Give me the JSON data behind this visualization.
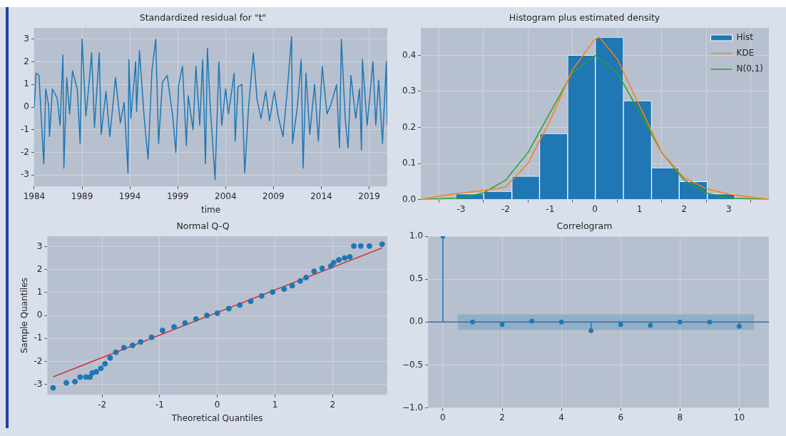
{
  "chart_data": [
    {
      "type": "line",
      "title": "Standardized residual for \"t\"",
      "xlabel": "time",
      "color": "#1f77b4",
      "grid": true,
      "xlim": [
        1984,
        2020.9
      ],
      "xticks": [
        1984,
        1989,
        1994,
        1999,
        2004,
        2009,
        2014,
        2019
      ],
      "ylim": [
        -3.5,
        3.5
      ],
      "yticks": [
        -3,
        -2,
        -1,
        0,
        1,
        2,
        3
      ],
      "x": [
        1984.0,
        1984.2,
        1984.5,
        1985.0,
        1985.2,
        1985.5,
        1985.6,
        1985.9,
        1986.4,
        1986.7,
        1987.0,
        1987.1,
        1987.4,
        1987.7,
        1988.0,
        1988.5,
        1988.8,
        1989.0,
        1989.4,
        1989.7,
        1990.0,
        1990.3,
        1990.8,
        1991.0,
        1991.5,
        1991.9,
        1992.5,
        1993.0,
        1993.4,
        1993.8,
        1993.9,
        1994.1,
        1994.6,
        1994.7,
        1995.0,
        1995.5,
        1995.9,
        1996.3,
        1996.7,
        1997.0,
        1997.4,
        1997.9,
        1998.5,
        1998.8,
        1999.1,
        1999.5,
        1999.9,
        2000.1,
        2000.6,
        2000.9,
        2001.3,
        2001.6,
        2001.9,
        2002.1,
        2002.4,
        2002.9,
        2003.3,
        2003.6,
        2004.0,
        2004.3,
        2004.9,
        2005.0,
        2005.3,
        2005.7,
        2006.0,
        2006.4,
        2006.9,
        2007.3,
        2007.7,
        2008.2,
        2008.6,
        2009.1,
        2009.5,
        2010.0,
        2010.4,
        2010.9,
        2011.0,
        2011.5,
        2011.9,
        2012.1,
        2012.4,
        2012.8,
        2013.3,
        2013.7,
        2014.1,
        2014.6,
        2015.0,
        2015.6,
        2015.9,
        2016.1,
        2016.5,
        2016.8,
        2017.1,
        2017.6,
        2018.0,
        2018.2,
        2018.3,
        2018.8,
        2019.4,
        2019.7,
        2020.0,
        2020.4,
        2020.8,
        2020.9
      ],
      "values": [
        0,
        1.5,
        1.4,
        -2.5,
        0.8,
        0.1,
        -1.3,
        0.8,
        0.4,
        -0.8,
        2.3,
        -2.7,
        1.3,
        -0.3,
        1.6,
        0.8,
        -1.6,
        3.0,
        -0.4,
        0.9,
        2.4,
        -0.9,
        2.4,
        -1.2,
        0.7,
        -1.3,
        1.3,
        -0.7,
        0.2,
        -2.9,
        2.1,
        -0.5,
        2.0,
        -0.2,
        2.5,
        -0.5,
        -2.3,
        1.6,
        3.0,
        -1.6,
        1.1,
        1.4,
        -0.5,
        -2.0,
        1.0,
        1.8,
        -1.7,
        0.5,
        -1.0,
        1.8,
        -0.8,
        2.1,
        -2.5,
        2.6,
        0.0,
        -3.2,
        2.0,
        -0.8,
        0.8,
        -0.3,
        1.5,
        -1.5,
        0.9,
        1.0,
        -2.9,
        0.0,
        2.4,
        0.3,
        -0.5,
        0.7,
        -0.6,
        0.7,
        -0.4,
        -1.3,
        0.5,
        3.1,
        -1.6,
        0.0,
        2.1,
        -2.7,
        1.5,
        -1.2,
        1.0,
        -1.5,
        1.8,
        -0.3,
        0.1,
        1.0,
        -1.8,
        3.0,
        -0.5,
        -1.8,
        1.4,
        -0.5,
        0.8,
        -1.9,
        2.1,
        -0.8,
        2.0,
        -0.8,
        1.2,
        -1.6,
        2.0,
        -0.8
      ]
    },
    {
      "type": "histogram",
      "title": "Histogram plus estimated density",
      "grid": true,
      "legend": "top right",
      "xlim": [
        -3.9,
        3.9
      ],
      "xticks": [
        -3,
        -2,
        -1,
        0,
        1,
        2,
        3
      ],
      "ylim": [
        0,
        0.476
      ],
      "yticks": [
        {
          "value": 0,
          "label": "0.0"
        },
        {
          "value": 0.1,
          "label": "0.1"
        },
        {
          "value": 0.2,
          "label": "0.2"
        },
        {
          "value": 0.3,
          "label": "0.3"
        },
        {
          "value": 0.4,
          "label": "0.4"
        }
      ],
      "bins": [
        -3.12,
        -2.49,
        -1.86,
        -1.24,
        -0.61,
        0.01,
        0.64,
        1.27,
        1.89,
        2.52,
        3.14
      ],
      "series": [
        {
          "name": "Hist",
          "type": "histogram",
          "color": "#1f77b4",
          "values": [
            0.016,
            0.023,
            0.065,
            0.183,
            0.4,
            0.45,
            0.274,
            0.088,
            0.05,
            0.016
          ]
        },
        {
          "name": "KDE",
          "type": "line",
          "color": "#ff7f0e",
          "x": [
            -3.9,
            -3.2,
            -2.5,
            -2,
            -1.5,
            -1,
            -0.5,
            0,
            0.1,
            0.5,
            1,
            1.5,
            2,
            2.5,
            3,
            3.9
          ],
          "values": [
            0,
            0.015,
            0.025,
            0.035,
            0.1,
            0.22,
            0.36,
            0.445,
            0.45,
            0.39,
            0.26,
            0.13,
            0.06,
            0.03,
            0.015,
            0
          ]
        },
        {
          "name": "N(0,1)",
          "type": "line",
          "color": "#2ca02c",
          "x": [
            -3.9,
            -3,
            -2.5,
            -2,
            -1.5,
            -1,
            -0.5,
            0,
            0.5,
            1,
            1.5,
            2,
            2.5,
            3,
            3.9
          ],
          "values": [
            0,
            0.004,
            0.018,
            0.054,
            0.13,
            0.242,
            0.352,
            0.399,
            0.352,
            0.242,
            0.13,
            0.054,
            0.018,
            0.004,
            0
          ]
        }
      ]
    },
    {
      "type": "scatter",
      "title": "Normal Q-Q",
      "xlabel": "Theoretical Quantiles",
      "ylabel": "Sample Quantiles",
      "grid": true,
      "xlim": [
        -2.95,
        2.95
      ],
      "xticks": [
        -2,
        -1,
        0,
        1,
        2
      ],
      "ylim": [
        -3.45,
        3.45
      ],
      "yticks": [
        -3,
        -2,
        -1,
        0,
        1,
        2,
        3
      ],
      "series": [
        {
          "type": "scatter",
          "marker": "circle",
          "color": "#1f77b4",
          "x": [
            -2.85,
            -2.62,
            -2.47,
            -2.38,
            -2.28,
            -2.21,
            -2.17,
            -2.1,
            -2.02,
            -1.95,
            -1.86,
            -1.76,
            -1.62,
            -1.47,
            -1.33,
            -1.14,
            -0.95,
            -0.75,
            -0.56,
            -0.37,
            -0.18,
            0,
            0.2,
            0.39,
            0.58,
            0.77,
            0.96,
            1.16,
            1.3,
            1.44,
            1.54,
            1.68,
            1.82,
            1.97,
            2.02,
            2.11,
            2.21,
            2.3,
            2.37,
            2.49,
            2.64,
            2.86
          ],
          "values": [
            -3.15,
            -2.93,
            -2.88,
            -2.68,
            -2.68,
            -2.68,
            -2.5,
            -2.45,
            -2.3,
            -2.1,
            -1.85,
            -1.6,
            -1.4,
            -1.3,
            -1.15,
            -0.95,
            -0.65,
            -0.5,
            -0.33,
            -0.15,
            0.0,
            0.1,
            0.3,
            0.45,
            0.62,
            0.85,
            1.02,
            1.15,
            1.3,
            1.5,
            1.65,
            1.92,
            2.05,
            2.15,
            2.3,
            2.42,
            2.5,
            2.55,
            3.02,
            3.02,
            3.02,
            3.1
          ]
        },
        {
          "type": "line",
          "color": "#d62728",
          "x": [
            -2.85,
            2.86
          ],
          "values": [
            -2.67,
            2.94
          ]
        }
      ]
    },
    {
      "type": "lollipop",
      "title": "Correlogram",
      "grid": true,
      "marker": "circle",
      "color": "#1f77b4",
      "xlim": [
        -0.5,
        11
      ],
      "xticks": [
        0,
        2,
        4,
        6,
        8,
        10
      ],
      "ylim": [
        -1,
        1
      ],
      "yticks": [
        {
          "value": -1,
          "label": "−1.0"
        },
        {
          "value": -0.5,
          "label": "−0.5"
        },
        {
          "value": 0,
          "label": "0.0"
        },
        {
          "value": 0.5,
          "label": "0.5"
        },
        {
          "value": 1,
          "label": "1.0"
        }
      ],
      "x": [
        0,
        1,
        2,
        3,
        4,
        5,
        6,
        7,
        8,
        9,
        10
      ],
      "values": [
        1.0,
        0.0,
        -0.03,
        0.01,
        0.0,
        -0.1,
        -0.03,
        -0.04,
        0.0,
        0.0,
        -0.05
      ],
      "ref_lines": [
        {
          "axis": "y",
          "value": 0,
          "color": "#3b6d99"
        }
      ],
      "bands": [
        {
          "axis": "y",
          "from": -0.09,
          "to": 0.09,
          "color": "#1f77b4"
        }
      ]
    }
  ]
}
